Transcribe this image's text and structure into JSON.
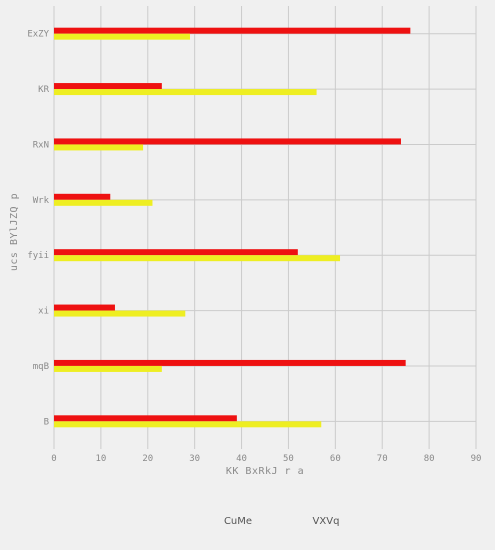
{
  "chart_data": {
    "type": "bar",
    "orientation": "horizontal",
    "categories": [
      "ExZY",
      "KR",
      "RxN",
      "Wrk",
      "fyii",
      "xi",
      "mqB",
      "B"
    ],
    "series": [
      {
        "name": "CuMe",
        "color": "#ee1111",
        "values": [
          76,
          23,
          74,
          12,
          52,
          13,
          75,
          39
        ]
      },
      {
        "name": "VXVq",
        "color": "#eeee22",
        "values": [
          29,
          56,
          19,
          21,
          61,
          28,
          23,
          57
        ]
      }
    ],
    "xlabel": "KK BxRkJ r a",
    "ylabel": "ucs BYlJZQ p",
    "xlim": [
      0,
      90
    ],
    "xticks": [
      0,
      10,
      20,
      30,
      40,
      50,
      60,
      70,
      80,
      90
    ],
    "grid": true,
    "legend": "bottom"
  }
}
